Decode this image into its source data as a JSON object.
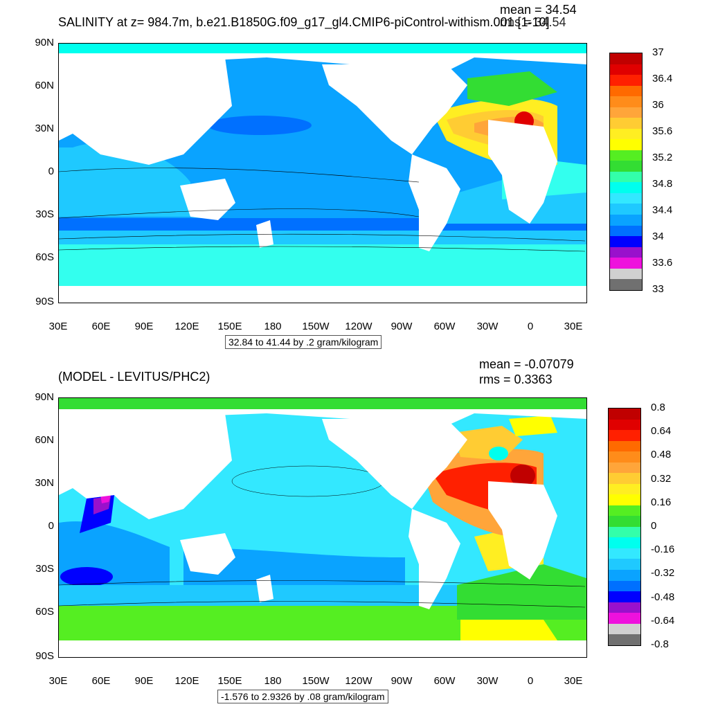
{
  "top": {
    "title": "SALINITY at z= 984.7m, b.e21.B1850G.f09_g17_gl4.CMIP6-piControl-withism.001 [1-10]",
    "mean": "mean = 34.54",
    "rms": "rms = 34.54",
    "range": "32.84 to 41.44 by .2 gram/kilogram",
    "colors": [
      "#c00000",
      "#e00000",
      "#ff2000",
      "#ff6a00",
      "#ff8c1a",
      "#ffa53a",
      "#ffcc33",
      "#ffee22",
      "#ffff00",
      "#55ee22",
      "#33dd33",
      "#33ffaa",
      "#00ffee",
      "#33e8ff",
      "#1fc9ff",
      "#0aa3ff",
      "#0070ff",
      "#0000ff",
      "#9911cc",
      "#ee11dd",
      "#d0d0d0",
      "#707070"
    ],
    "labels": [
      "37",
      "36.4",
      "36",
      "35.6",
      "35.2",
      "34.8",
      "34.4",
      "34",
      "33.6",
      "33"
    ]
  },
  "bottom": {
    "title": "(MODEL - LEVITUS/PHC2)",
    "mean": "mean = -0.07079",
    "rms": "rms = 0.3363",
    "range": "-1.576 to 2.9326 by .08 gram/kilogram",
    "colors": [
      "#c00000",
      "#e00000",
      "#ff2000",
      "#ff6a00",
      "#ff8c1a",
      "#ffa53a",
      "#ffcc33",
      "#ffee22",
      "#ffff00",
      "#55ee22",
      "#33dd33",
      "#33ffaa",
      "#00ffee",
      "#33e8ff",
      "#1fc9ff",
      "#0aa3ff",
      "#0070ff",
      "#0000ff",
      "#9911cc",
      "#ee11dd",
      "#d0d0d0",
      "#707070"
    ],
    "labels": [
      "0.8",
      "0.64",
      "0.48",
      "0.32",
      "0.16",
      "0",
      "-0.16",
      "-0.32",
      "-0.48",
      "-0.64",
      "-0.8"
    ]
  },
  "axes": {
    "lat_ticks": [
      "90N",
      "60N",
      "30N",
      "0",
      "30S",
      "60S",
      "90S"
    ],
    "lon_ticks": [
      "30E",
      "60E",
      "90E",
      "120E",
      "150E",
      "180",
      "150W",
      "120W",
      "90W",
      "60W",
      "30W",
      "0",
      "30E"
    ]
  }
}
